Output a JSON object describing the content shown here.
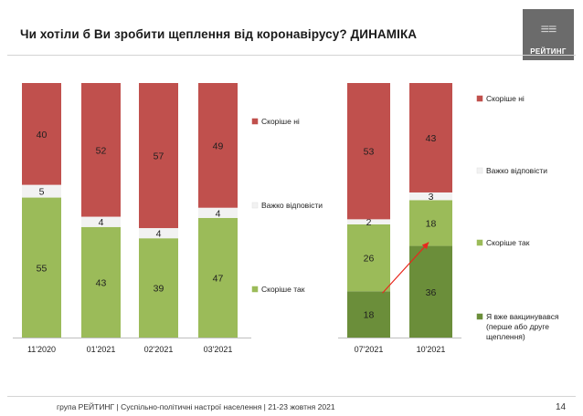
{
  "title": "Чи хотіли б Ви зробити щеплення від коронавірусу? ДИНАМІКА",
  "logo": {
    "mark": "≡≡",
    "text": "РЕЙТИНГ"
  },
  "footer": "група РЕЙТИНГ | Суспільно-політичні настрої населення  | 21-23 жовтня 2021",
  "page_number": "14",
  "colors": {
    "skorishe_ni": "#c0504d",
    "vazhko": "#f2f2f2",
    "skorishe_tak": "#9bbb59",
    "vaktsynuvavsia": "#6b8e3a",
    "arrow": "#e8281e"
  },
  "chart_data": [
    {
      "type": "bar",
      "stacked": true,
      "normalized": true,
      "categories": [
        "11'2020",
        "01'2021",
        "02'2021",
        "03'2021"
      ],
      "series": [
        {
          "name": "Скоріше так",
          "color": "#9bbb59",
          "values": [
            55,
            43,
            39,
            47
          ]
        },
        {
          "name": "Важко відповісти",
          "color": "#f2f2f2",
          "values": [
            5,
            4,
            4,
            4
          ]
        },
        {
          "name": "Скоріше ні",
          "color": "#c0504d",
          "values": [
            40,
            52,
            57,
            49
          ]
        }
      ],
      "legend_position": "right",
      "ylim": [
        0,
        100
      ],
      "grid": false
    },
    {
      "type": "bar",
      "stacked": true,
      "normalized": true,
      "categories": [
        "07'2021",
        "10'2021"
      ],
      "series": [
        {
          "name": "Я вже вакцинувався (перше або друге щеплення)",
          "color": "#6b8e3a",
          "values": [
            18,
            36
          ]
        },
        {
          "name": "Скоріше так",
          "color": "#9bbb59",
          "values": [
            26,
            18
          ]
        },
        {
          "name": "Важко відповісти",
          "color": "#f2f2f2",
          "values": [
            2,
            3
          ]
        },
        {
          "name": "Скоріше ні",
          "color": "#c0504d",
          "values": [
            53,
            43
          ]
        }
      ],
      "annotation": "red arrow from 07'2021 vaccinated segment to 10'2021 vaccinated segment",
      "legend_position": "right",
      "ylim": [
        0,
        100
      ],
      "grid": false
    }
  ]
}
